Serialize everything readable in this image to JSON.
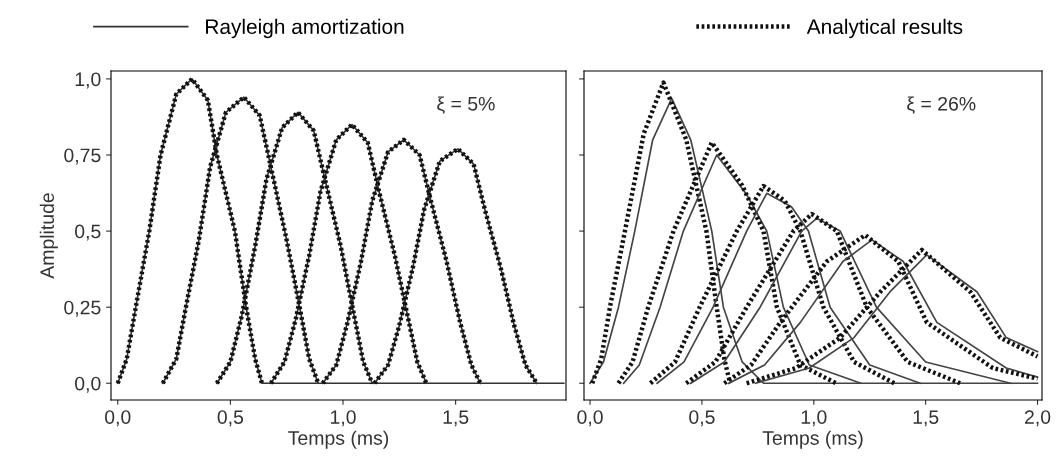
{
  "chart_data": [
    {
      "type": "line",
      "xlabel": "Temps (ms)",
      "ylabel": "Amplitude",
      "annotations": [
        "ξ = 5%"
      ],
      "legend": "top",
      "xlim": [
        -0.03,
        1.99
      ],
      "xticks": [
        {
          "value": 0,
          "label": "0,0"
        },
        {
          "value": 0.5,
          "label": "0,5"
        },
        {
          "value": 1,
          "label": "1,0"
        },
        {
          "value": 1.5,
          "label": "1,5"
        }
      ],
      "ylim": [
        -0.055,
        1.026
      ],
      "yticks": [
        {
          "value": 0,
          "label": "0,0"
        },
        {
          "value": 0.25,
          "label": "0,25"
        },
        {
          "value": 0.5,
          "label": "0,5"
        },
        {
          "value": 0.75,
          "label": "0,75"
        },
        {
          "value": 1,
          "label": "1,0"
        }
      ],
      "series": [
        {
          "name": "Rayleigh amortization",
          "color": "#333333",
          "line_style": "solid",
          "x": [
            0.0,
            0.04,
            0.08,
            0.14,
            0.19,
            0.26,
            0.33,
            0.4,
            0.44,
            0.52,
            0.57,
            0.61,
            0.64,
            1.98
          ],
          "values": [
            0,
            0.08,
            0.25,
            0.5,
            0.75,
            0.95,
            1.0,
            0.93,
            0.75,
            0.5,
            0.25,
            0.08,
            0,
            0
          ]
        },
        {
          "name": "Analytical results",
          "color": "#111111",
          "line_style": "dotted",
          "x": [
            0.0,
            0.04,
            0.08,
            0.14,
            0.19,
            0.26,
            0.33,
            0.4,
            0.44,
            0.52,
            0.57,
            0.61,
            0.64
          ],
          "values": [
            0,
            0.08,
            0.25,
            0.5,
            0.75,
            0.95,
            1.0,
            0.93,
            0.75,
            0.5,
            0.25,
            0.08,
            0
          ]
        },
        {
          "color": "#333333",
          "line_style": "solid",
          "x": [
            0.2,
            0.26,
            0.3,
            0.36,
            0.41,
            0.48,
            0.56,
            0.63,
            0.68,
            0.75,
            0.81,
            0.85,
            0.89
          ],
          "values": [
            0,
            0.08,
            0.24,
            0.47,
            0.71,
            0.89,
            0.94,
            0.88,
            0.71,
            0.47,
            0.24,
            0.08,
            0
          ]
        },
        {
          "color": "#111111",
          "line_style": "dotted",
          "x": [
            0.2,
            0.26,
            0.3,
            0.36,
            0.41,
            0.48,
            0.56,
            0.63,
            0.68,
            0.75,
            0.81,
            0.85,
            0.89
          ],
          "values": [
            0,
            0.08,
            0.24,
            0.47,
            0.71,
            0.89,
            0.94,
            0.88,
            0.71,
            0.47,
            0.24,
            0.08,
            0
          ]
        },
        {
          "color": "#333333",
          "line_style": "solid",
          "x": [
            0.44,
            0.5,
            0.55,
            0.61,
            0.66,
            0.73,
            0.8,
            0.87,
            0.92,
            0.99,
            1.05,
            1.09,
            1.13
          ],
          "values": [
            0,
            0.07,
            0.22,
            0.45,
            0.67,
            0.84,
            0.89,
            0.83,
            0.67,
            0.45,
            0.22,
            0.07,
            0
          ]
        },
        {
          "color": "#111111",
          "line_style": "dotted",
          "x": [
            0.44,
            0.5,
            0.55,
            0.61,
            0.66,
            0.73,
            0.8,
            0.87,
            0.92,
            0.99,
            1.05,
            1.09,
            1.13
          ],
          "values": [
            0,
            0.07,
            0.22,
            0.45,
            0.67,
            0.84,
            0.89,
            0.83,
            0.67,
            0.45,
            0.22,
            0.07,
            0
          ]
        },
        {
          "color": "#333333",
          "line_style": "solid",
          "x": [
            0.68,
            0.74,
            0.79,
            0.85,
            0.9,
            0.97,
            1.04,
            1.11,
            1.16,
            1.23,
            1.29,
            1.33,
            1.37
          ],
          "values": [
            0,
            0.07,
            0.21,
            0.42,
            0.63,
            0.8,
            0.85,
            0.79,
            0.63,
            0.42,
            0.21,
            0.07,
            0
          ]
        },
        {
          "color": "#111111",
          "line_style": "dotted",
          "x": [
            0.68,
            0.74,
            0.79,
            0.85,
            0.9,
            0.97,
            1.04,
            1.11,
            1.16,
            1.23,
            1.29,
            1.33,
            1.37
          ],
          "values": [
            0,
            0.07,
            0.21,
            0.42,
            0.63,
            0.8,
            0.85,
            0.79,
            0.63,
            0.42,
            0.21,
            0.07,
            0
          ]
        },
        {
          "color": "#333333",
          "line_style": "solid",
          "x": [
            0.91,
            0.97,
            1.02,
            1.08,
            1.13,
            1.2,
            1.27,
            1.34,
            1.39,
            1.46,
            1.52,
            1.57,
            1.61
          ],
          "values": [
            0,
            0.06,
            0.2,
            0.4,
            0.6,
            0.76,
            0.8,
            0.75,
            0.6,
            0.4,
            0.2,
            0.06,
            0
          ]
        },
        {
          "color": "#111111",
          "line_style": "dotted",
          "x": [
            0.91,
            0.97,
            1.02,
            1.08,
            1.13,
            1.2,
            1.27,
            1.34,
            1.39,
            1.46,
            1.52,
            1.57,
            1.61
          ],
          "values": [
            0,
            0.06,
            0.2,
            0.4,
            0.6,
            0.76,
            0.8,
            0.75,
            0.6,
            0.4,
            0.2,
            0.06,
            0
          ]
        },
        {
          "color": "#333333",
          "line_style": "solid",
          "x": [
            1.14,
            1.2,
            1.25,
            1.31,
            1.36,
            1.43,
            1.51,
            1.58,
            1.63,
            1.7,
            1.76,
            1.81,
            1.86
          ],
          "values": [
            0,
            0.06,
            0.19,
            0.38,
            0.57,
            0.73,
            0.77,
            0.72,
            0.57,
            0.38,
            0.19,
            0.06,
            0
          ]
        },
        {
          "color": "#111111",
          "line_style": "dotted",
          "x": [
            1.14,
            1.2,
            1.25,
            1.31,
            1.36,
            1.43,
            1.51,
            1.58,
            1.63,
            1.7,
            1.76,
            1.81,
            1.86
          ],
          "values": [
            0,
            0.06,
            0.19,
            0.38,
            0.57,
            0.73,
            0.77,
            0.72,
            0.57,
            0.38,
            0.19,
            0.06,
            0
          ]
        }
      ]
    },
    {
      "type": "line",
      "xlabel": "Temps (ms)",
      "annotations": [
        "ξ = 26%"
      ],
      "tick_labels": "x",
      "xlim": [
        -0.027,
        2.02
      ],
      "xticks": [
        {
          "value": 0,
          "label": "0,0"
        },
        {
          "value": 0.5,
          "label": "0,5"
        },
        {
          "value": 1,
          "label": "1,0"
        },
        {
          "value": 1.5,
          "label": "1,5"
        },
        {
          "value": 2,
          "label": "2,0"
        }
      ],
      "ylim": [
        -0.055,
        1.026
      ],
      "yticks": [
        0,
        0.25,
        0.5,
        0.75,
        1
      ],
      "series": [
        {
          "color": "#444444",
          "line_style": "solid",
          "x": [
            0.0,
            0.06,
            0.127,
            0.2,
            0.28,
            0.365,
            0.45,
            0.544,
            0.596,
            0.68,
            0.775,
            2.0
          ],
          "values": [
            0,
            0.07,
            0.25,
            0.5,
            0.8,
            0.936,
            0.8,
            0.5,
            0.25,
            0.07,
            0,
            0
          ]
        },
        {
          "color": "#111111",
          "line_style": "dotted",
          "x": [
            0.01,
            0.05,
            0.089,
            0.156,
            0.24,
            0.328,
            0.43,
            0.52,
            0.566,
            0.6,
            0.626
          ],
          "values": [
            0,
            0.08,
            0.25,
            0.5,
            0.82,
            0.988,
            0.8,
            0.5,
            0.25,
            0.08,
            0
          ]
        },
        {
          "color": "#444444",
          "line_style": "solid",
          "x": [
            0.15,
            0.22,
            0.313,
            0.417,
            0.566,
            0.7,
            0.79,
            0.864,
            0.98,
            1.21
          ],
          "values": [
            0,
            0.06,
            0.25,
            0.5,
            0.75,
            0.62,
            0.5,
            0.25,
            0.06,
            0
          ]
        },
        {
          "color": "#111111",
          "line_style": "dotted",
          "x": [
            0.127,
            0.19,
            0.26,
            0.373,
            0.544,
            0.68,
            0.775,
            0.835,
            0.94,
            1.1
          ],
          "values": [
            0,
            0.07,
            0.25,
            0.5,
            0.791,
            0.65,
            0.5,
            0.25,
            0.06,
            0
          ]
        },
        {
          "color": "#444444",
          "line_style": "solid",
          "x": [
            0.3,
            0.42,
            0.55,
            0.7,
            0.79,
            0.9,
            0.976,
            1.073,
            1.25,
            1.475
          ],
          "values": [
            0,
            0.07,
            0.25,
            0.5,
            0.624,
            0.58,
            0.5,
            0.25,
            0.06,
            0
          ]
        },
        {
          "color": "#111111",
          "line_style": "dotted",
          "x": [
            0.27,
            0.38,
            0.49,
            0.656,
            0.775,
            0.87,
            0.94,
            1.043,
            1.18,
            1.36
          ],
          "values": [
            0,
            0.07,
            0.25,
            0.5,
            0.648,
            0.6,
            0.5,
            0.25,
            0.07,
            0
          ]
        },
        {
          "color": "#444444",
          "line_style": "solid",
          "x": [
            0.45,
            0.6,
            0.76,
            0.946,
            1.013,
            1.118,
            1.28,
            1.5,
            1.88
          ],
          "values": [
            0,
            0.07,
            0.25,
            0.5,
            0.542,
            0.5,
            0.25,
            0.07,
            0
          ]
        },
        {
          "color": "#111111",
          "line_style": "dotted",
          "x": [
            0.43,
            0.56,
            0.7,
            0.909,
            0.991,
            1.103,
            1.237,
            1.42,
            1.654
          ],
          "values": [
            0,
            0.07,
            0.25,
            0.5,
            0.556,
            0.5,
            0.25,
            0.07,
            0
          ]
        },
        {
          "color": "#444444",
          "line_style": "solid",
          "x": [
            0.62,
            0.78,
            0.94,
            1.13,
            1.26,
            1.4,
            1.55,
            1.86,
            2.0
          ],
          "values": [
            0,
            0.06,
            0.2,
            0.4,
            0.471,
            0.4,
            0.2,
            0.05,
            0.02
          ]
        },
        {
          "color": "#111111",
          "line_style": "dotted",
          "x": [
            0.6,
            0.72,
            0.85,
            1.058,
            1.23,
            1.378,
            1.505,
            1.8,
            2.0
          ],
          "values": [
            0,
            0.06,
            0.2,
            0.4,
            0.487,
            0.4,
            0.2,
            0.05,
            0.015
          ]
        },
        {
          "color": "#444444",
          "line_style": "solid",
          "x": [
            0.74,
            0.98,
            1.18,
            1.34,
            1.505,
            1.73,
            1.86,
            2.0
          ],
          "values": [
            0,
            0.05,
            0.15,
            0.3,
            0.422,
            0.3,
            0.15,
            0.104
          ]
        },
        {
          "color": "#111111",
          "line_style": "dotted",
          "x": [
            0.7,
            0.92,
            1.118,
            1.297,
            1.483,
            1.7,
            1.833,
            2.0
          ],
          "values": [
            0,
            0.05,
            0.15,
            0.3,
            0.438,
            0.3,
            0.15,
            0.088
          ]
        }
      ]
    }
  ]
}
